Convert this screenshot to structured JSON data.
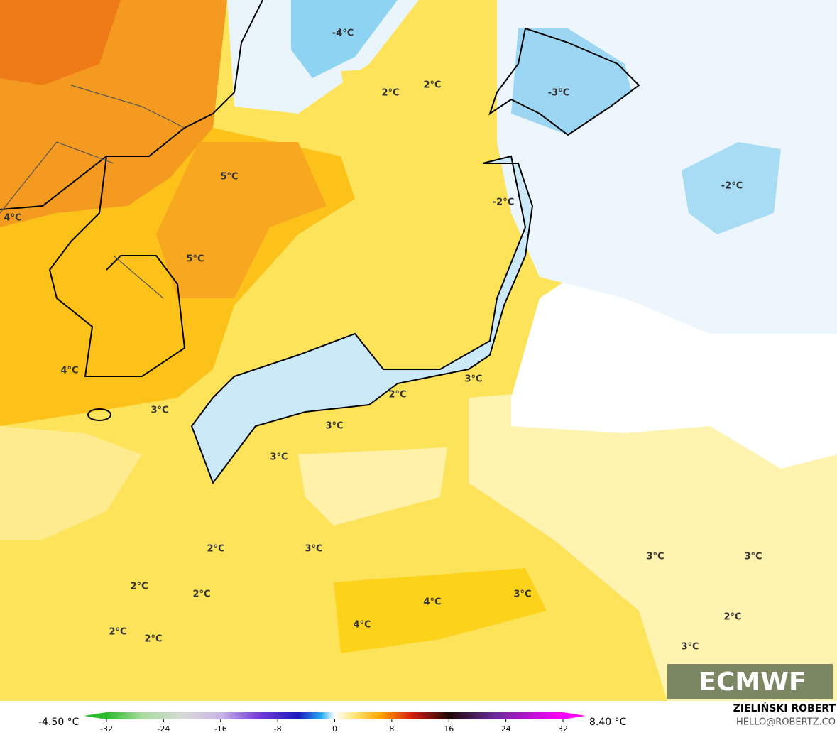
{
  "map": {
    "labels": [
      "-4°C",
      "2°C",
      "2°C",
      "-3°C",
      "-2°C",
      "5°C",
      "-2°C",
      "4°C",
      "5°C",
      "4°C",
      "3°C",
      "2°C",
      "3°C",
      "3°C",
      "3°C",
      "2°C",
      "3°C",
      "3°C",
      "3°C",
      "2°C",
      "2°C",
      "3°C",
      "4°C",
      "2°C",
      "2°C",
      "4°C",
      "2°C",
      "3°C"
    ]
  },
  "colorbar": {
    "min_label": "-4.50 °C",
    "max_label": "8.40 °C",
    "ticks": [
      -32,
      -24,
      -16,
      -8,
      0,
      8,
      16,
      24,
      32
    ]
  },
  "credit": {
    "author": "ZIELIŃSKI ROBERT",
    "contact": "HELLO@ROBERTZ.CO"
  },
  "logo": "ECMWF"
}
